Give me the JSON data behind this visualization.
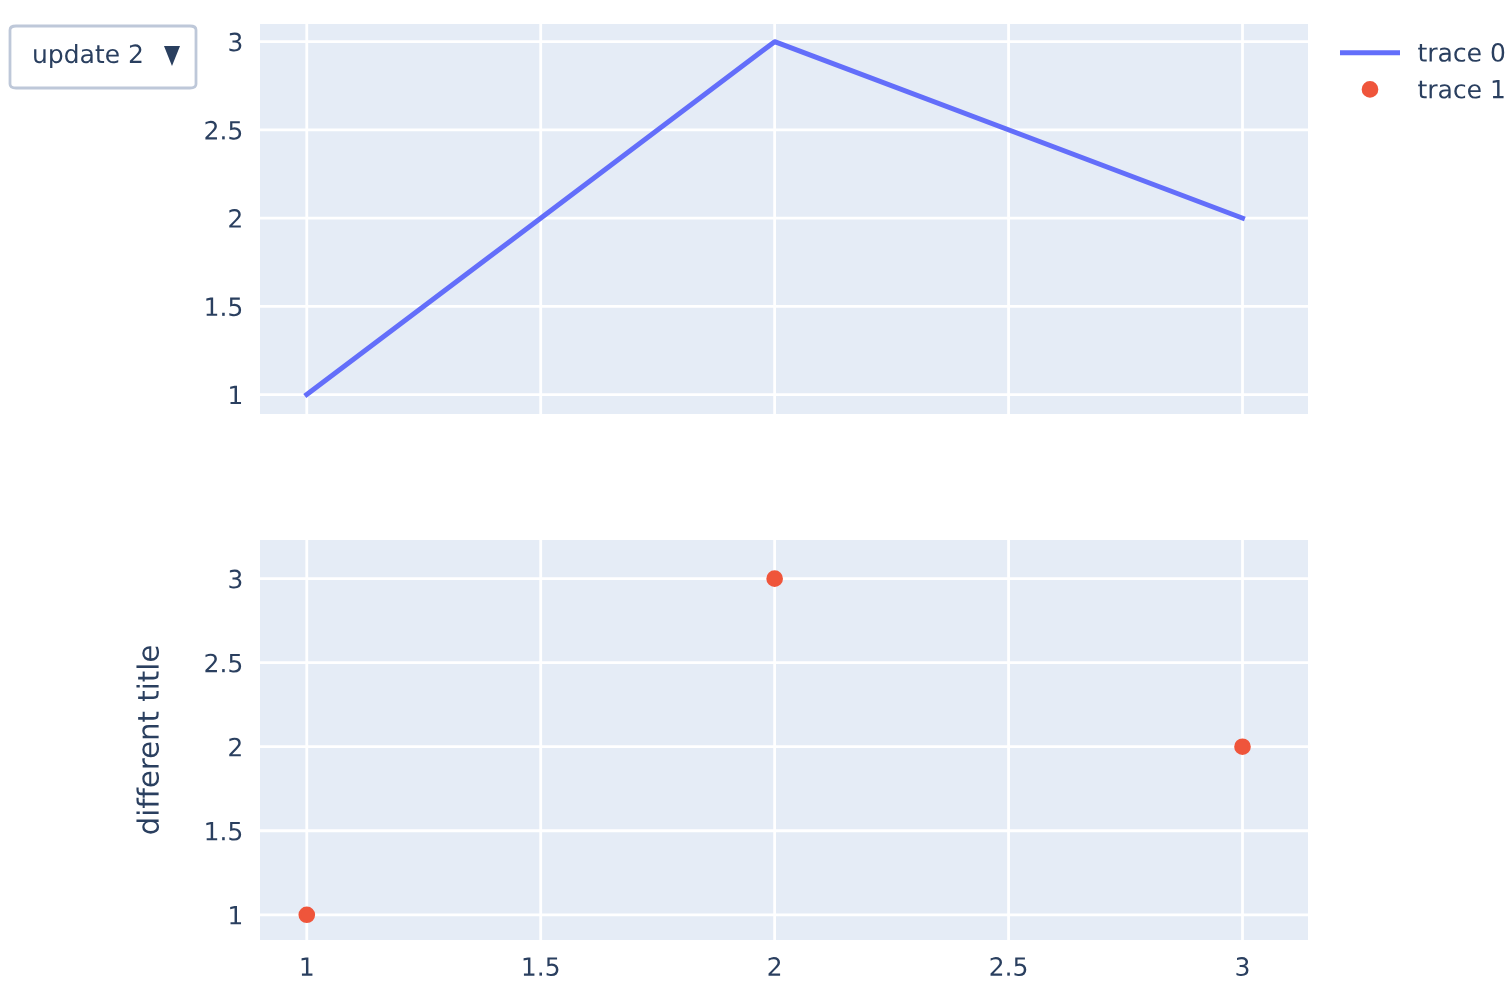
{
  "chart_data": [
    {
      "type": "line",
      "x": [
        1,
        2,
        3
      ],
      "series": [
        {
          "name": "trace 0",
          "color": "#636efa",
          "values": [
            1,
            3,
            2
          ]
        }
      ],
      "xlim": [
        0.9,
        3.14
      ],
      "ylim": [
        0.89,
        3.1
      ],
      "xticks": [
        1,
        1.5,
        2,
        2.5,
        3
      ],
      "yticks": [
        1,
        1.5,
        2,
        2.5,
        3
      ],
      "tick_labels": "y",
      "grid": true,
      "legend": "top right",
      "marker": "none",
      "annotations": [
        "update 2"
      ]
    },
    {
      "type": "scatter",
      "x": [
        1,
        2,
        3
      ],
      "series": [
        {
          "name": "trace 1",
          "color": "#ef553b",
          "values": [
            1,
            3,
            2
          ]
        }
      ],
      "xlim": [
        0.9,
        3.14
      ],
      "ylim": [
        0.85,
        3.23
      ],
      "xticks": [
        1,
        1.5,
        2,
        2.5,
        3
      ],
      "yticks": [
        1,
        1.5,
        2,
        2.5,
        3
      ],
      "ylabel": "different title",
      "grid": true,
      "legend": "top right",
      "marker": "circle"
    }
  ]
}
